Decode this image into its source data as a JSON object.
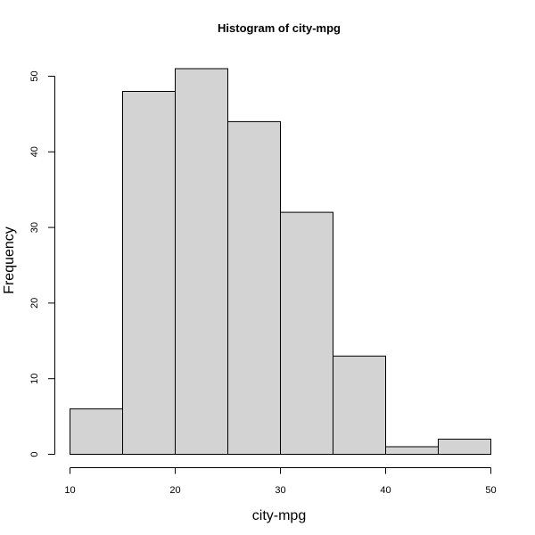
{
  "chart_data": {
    "type": "bar",
    "title": "Histogram of city-mpg",
    "xlabel": "city-mpg",
    "ylabel": "Frequency",
    "bin_edges": [
      10,
      15,
      20,
      25,
      30,
      35,
      40,
      45,
      50
    ],
    "values": [
      6,
      48,
      51,
      44,
      32,
      13,
      1,
      2
    ],
    "xlim": [
      10,
      50
    ],
    "ylim": [
      0,
      50
    ],
    "x_ticks": [
      10,
      20,
      30,
      40,
      50
    ],
    "y_ticks": [
      0,
      10,
      20,
      30,
      40,
      50
    ],
    "grid": false,
    "bar_color": "#d3d3d3",
    "edge_color": "#000000"
  }
}
